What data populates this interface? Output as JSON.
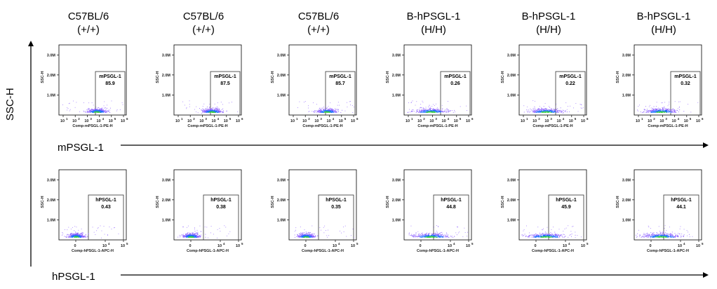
{
  "column_headers": [
    {
      "line1": "C57BL/6",
      "line2": "(+/+)"
    },
    {
      "line1": "C57BL/6",
      "line2": "(+/+)"
    },
    {
      "line1": "C57BL/6",
      "line2": "(+/+)"
    },
    {
      "line1": "B-hPSGL-1",
      "line2": "(H/H)"
    },
    {
      "line1": "B-hPSGL-1",
      "line2": "(H/H)"
    },
    {
      "line1": "B-hPSGL-1",
      "line2": "(H/H)"
    }
  ],
  "y_axis_label": "SSC-H",
  "rows": [
    {
      "label": "mPSGL-1"
    },
    {
      "label": "hPSGL-1"
    }
  ],
  "colors": {
    "dense": "#2ecc40",
    "mid": "#1f6fff",
    "sparse": "#8a5cff",
    "axis": "#000000"
  },
  "chart_data": [
    {
      "type": "scatter",
      "row": "mPSGL-1",
      "ylabel": "SSC-H",
      "xlabel": "Comp-mPSGL-1-PE-H",
      "yticks": [
        "1.0M",
        "2.0M",
        "3.0M"
      ],
      "ylim": [
        0,
        3500000
      ],
      "xscale": "log",
      "xticks": [
        {
          "base": "10",
          "exp": "1"
        },
        {
          "base": "10",
          "exp": "2"
        },
        {
          "base": "10",
          "exp": "3"
        },
        {
          "base": "10",
          "exp": "4"
        },
        {
          "base": "10",
          "exp": "5"
        },
        {
          "base": "10",
          "exp": "6"
        }
      ],
      "gate_name": "mPSGL-1",
      "panels": [
        {
          "column": "C57BL/6 (+/+)",
          "gate_percent": "85.9"
        },
        {
          "column": "C57BL/6 (+/+)",
          "gate_percent": "87.5"
        },
        {
          "column": "C57BL/6 (+/+)",
          "gate_percent": "85.7"
        },
        {
          "column": "B-hPSGL-1 (H/H)",
          "gate_percent": "0.26"
        },
        {
          "column": "B-hPSGL-1 (H/H)",
          "gate_percent": "0.22"
        },
        {
          "column": "B-hPSGL-1 (H/H)",
          "gate_percent": "0.32"
        }
      ]
    },
    {
      "type": "scatter",
      "row": "hPSGL-1",
      "ylabel": "SSC-H",
      "xlabel": "Comp-hPSGL-1-APC-H",
      "yticks": [
        "1.0M",
        "2.0M",
        "3.0M"
      ],
      "ylim": [
        0,
        3500000
      ],
      "xscale": "biexponential",
      "xticks": [
        {
          "base": "0",
          "exp": ""
        },
        {
          "base": "10",
          "exp": "4"
        },
        {
          "base": "10",
          "exp": "5"
        }
      ],
      "gate_name": "hPSGL-1",
      "panels": [
        {
          "column": "C57BL/6 (+/+)",
          "gate_percent": "0.43"
        },
        {
          "column": "C57BL/6 (+/+)",
          "gate_percent": "0.38"
        },
        {
          "column": "C57BL/6 (+/+)",
          "gate_percent": "0.35"
        },
        {
          "column": "B-hPSGL-1 (H/H)",
          "gate_percent": "44.8"
        },
        {
          "column": "B-hPSGL-1 (H/H)",
          "gate_percent": "45.9"
        },
        {
          "column": "B-hPSGL-1 (H/H)",
          "gate_percent": "44.1"
        }
      ]
    }
  ]
}
